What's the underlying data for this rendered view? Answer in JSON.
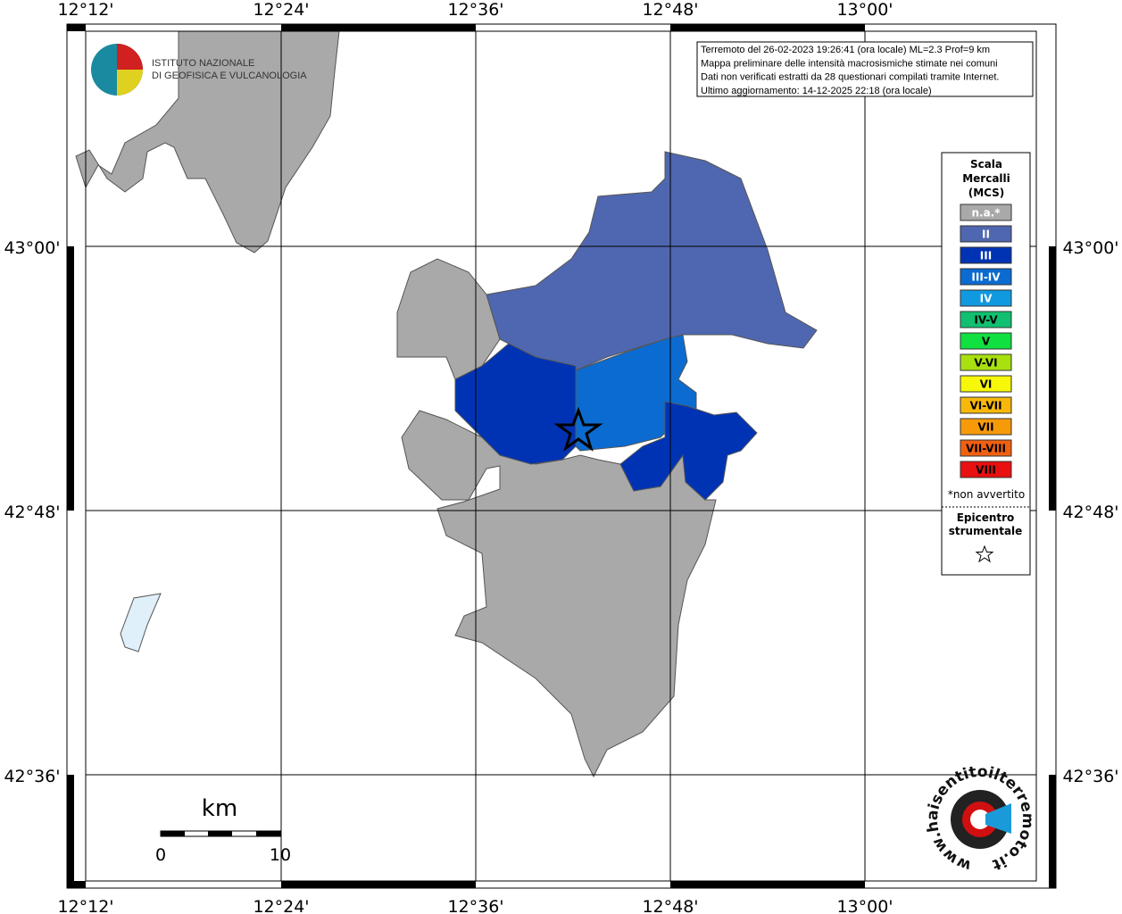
{
  "axes": {
    "lon_labels": [
      "12°12'",
      "12°24'",
      "12°36'",
      "12°48'",
      "13°00'"
    ],
    "lat_labels": [
      "43°00'",
      "42°48'",
      "42°36'"
    ]
  },
  "info_box": {
    "lines": [
      "Terremoto del 26-02-2023 19:26:41 (ora locale) ML=2.3 Prof=9 km",
      "Mappa preliminare delle intensità macrosismiche stimate nei comuni",
      "Dati non verificati estratti da 28 questionari compilati tramite Internet.",
      "Ultimo aggiornamento: 14-12-2025 22:18 (ora locale)"
    ]
  },
  "logo": {
    "line1": "ISTITUTO NAZIONALE",
    "line2": "DI GEOFISICA E VULCANOLOGIA"
  },
  "legend": {
    "title_lines": [
      "Scala",
      "Mercalli",
      "(MCS)"
    ],
    "items": [
      {
        "label": "n.a.*",
        "color": "#a9a9a9",
        "label_color": "#ffffff"
      },
      {
        "label": "II",
        "color": "#4f67b0",
        "label_color": "#ffffff"
      },
      {
        "label": "III",
        "color": "#0033b4",
        "label_color": "#ffffff"
      },
      {
        "label": "III-IV",
        "color": "#0b6bd0",
        "label_color": "#ffffff"
      },
      {
        "label": "IV",
        "color": "#1199e0",
        "label_color": "#ffffff"
      },
      {
        "label": "IV-V",
        "color": "#10c070",
        "label_color": "#000000"
      },
      {
        "label": "V",
        "color": "#10e040",
        "label_color": "#000000"
      },
      {
        "label": "V-VI",
        "color": "#a8e010",
        "label_color": "#000000"
      },
      {
        "label": "VI",
        "color": "#f7f70a",
        "label_color": "#000000"
      },
      {
        "label": "VI-VII",
        "color": "#f7b80a",
        "label_color": "#000000"
      },
      {
        "label": "VII",
        "color": "#f79a0a",
        "label_color": "#000000"
      },
      {
        "label": "VII-VIII",
        "color": "#f06010",
        "label_color": "#000000"
      },
      {
        "label": "VIII",
        "color": "#e81010",
        "label_color": "#000000"
      }
    ],
    "note": "*non avvertito",
    "epicenter_lines": [
      "Epicentro",
      "strumentale"
    ]
  },
  "scale_bar": {
    "unit": "km",
    "start": "0",
    "end": "10"
  },
  "site_logo": "www.haisentitoilterremoto.it"
}
